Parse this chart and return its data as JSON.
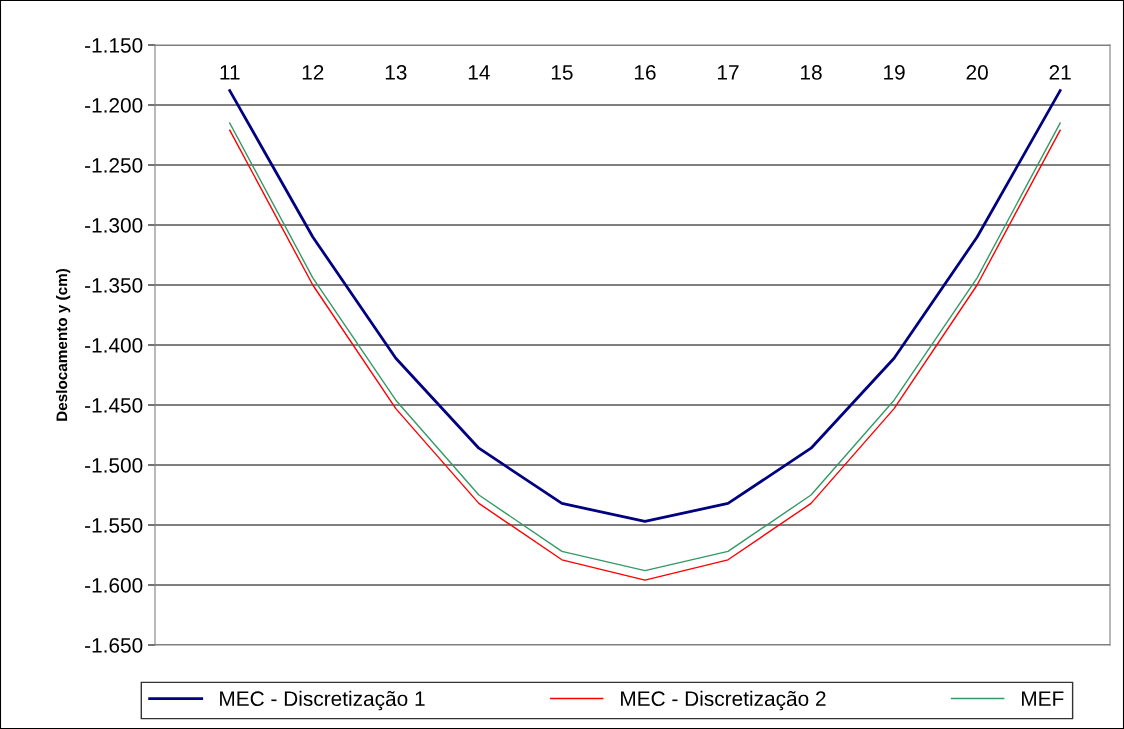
{
  "chart_data": {
    "type": "line",
    "ylabel": "Deslocamento y (cm)",
    "categories": [
      "11",
      "12",
      "13",
      "14",
      "15",
      "16",
      "17",
      "18",
      "19",
      "20",
      "21"
    ],
    "series": [
      {
        "name": "MEC - Discretização 1",
        "color": "#000080",
        "values": [
          -1.188,
          -1.31,
          -1.411,
          -1.486,
          -1.532,
          -1.547,
          -1.532,
          -1.486,
          -1.411,
          -1.31,
          -1.188
        ]
      },
      {
        "name": "MEC - Discretização 2",
        "color": "#ff0000",
        "values": [
          -1.221,
          -1.35,
          -1.453,
          -1.532,
          -1.579,
          -1.596,
          -1.579,
          -1.532,
          -1.453,
          -1.35,
          -1.221
        ]
      },
      {
        "name": "MEF",
        "color": "#339966",
        "values": [
          -1.215,
          -1.344,
          -1.446,
          -1.525,
          -1.572,
          -1.588,
          -1.572,
          -1.525,
          -1.446,
          -1.344,
          -1.215
        ]
      }
    ],
    "ylim": [
      -1.65,
      -1.15
    ],
    "yticks": [
      {
        "value": -1.65,
        "label": "-1.650"
      },
      {
        "value": -1.6,
        "label": "-1.600"
      },
      {
        "value": -1.55,
        "label": "-1.550"
      },
      {
        "value": -1.5,
        "label": "-1.500"
      },
      {
        "value": -1.45,
        "label": "-1.450"
      },
      {
        "value": -1.4,
        "label": "-1.400"
      },
      {
        "value": -1.35,
        "label": "-1.350"
      },
      {
        "value": -1.3,
        "label": "-1.300"
      },
      {
        "value": -1.25,
        "label": "-1.250"
      },
      {
        "value": -1.2,
        "label": "-1.200"
      },
      {
        "value": -1.15,
        "label": "-1.150"
      }
    ],
    "grid": "y",
    "legend": "bottom",
    "marker": "none",
    "line_style": "solid"
  }
}
